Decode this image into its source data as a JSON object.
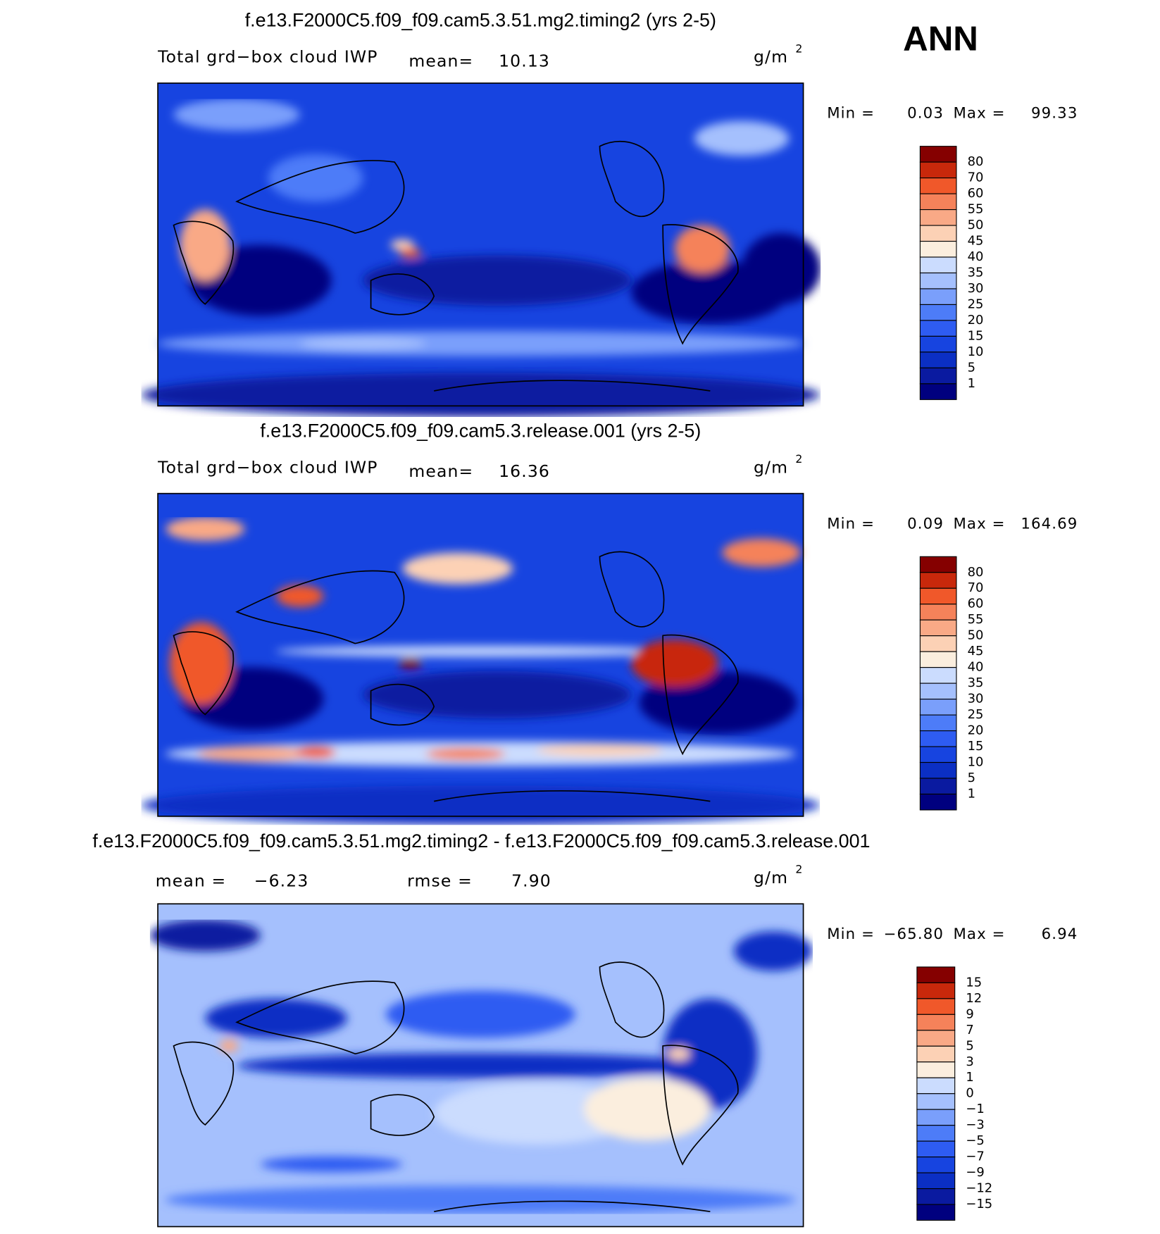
{
  "figure": {
    "season": "ANN",
    "palette": [
      "#00007f",
      "#0a1aa0",
      "#0b2fc4",
      "#1744e0",
      "#2e5cf2",
      "#4d7cf8",
      "#7a9ffb",
      "#a5c0fd",
      "#cbdcfe",
      "#fbeede",
      "#fcd1b5",
      "#f9a986",
      "#f5825a",
      "#f0582a",
      "#c8280b",
      "#850000"
    ],
    "panels": [
      {
        "title": "f.e13.F2000C5.f09_f09.cam5.3.51.mg2.timing2 (yrs 2-5)",
        "variable": "Total grd−box cloud IWP",
        "stats": [
          {
            "label": "mean=",
            "value": "10.13"
          }
        ],
        "units": {
          "base": "g/m",
          "sup": "2"
        },
        "min_label": "Min =",
        "min": "0.03",
        "max_label": "Max =",
        "max": "99.33",
        "levels": [
          "80",
          "70",
          "60",
          "55",
          "50",
          "45",
          "40",
          "35",
          "30",
          "25",
          "20",
          "15",
          "10",
          "5",
          "1"
        ]
      },
      {
        "title": "f.e13.F2000C5.f09_f09.cam5.3.release.001 (yrs 2-5)",
        "variable": "Total grd−box cloud IWP",
        "stats": [
          {
            "label": "mean=",
            "value": "16.36"
          }
        ],
        "units": {
          "base": "g/m",
          "sup": "2"
        },
        "min_label": "Min =",
        "min": "0.09",
        "max_label": "Max =",
        "max": "164.69",
        "levels": [
          "80",
          "70",
          "60",
          "55",
          "50",
          "45",
          "40",
          "35",
          "30",
          "25",
          "20",
          "15",
          "10",
          "5",
          "1"
        ]
      },
      {
        "title": "f.e13.F2000C5.f09_f09.cam5.3.51.mg2.timing2 - f.e13.F2000C5.f09_f09.cam5.3.release.001",
        "stats": [
          {
            "label": "mean =",
            "value": "−6.23"
          },
          {
            "label": "rmse =",
            "value": "7.90"
          }
        ],
        "units": {
          "base": "g/m",
          "sup": "2"
        },
        "min_label": "Min =",
        "min": "−65.80",
        "max_label": "Max =",
        "max": "6.94",
        "levels": [
          "15",
          "12",
          "9",
          "7",
          "5",
          "3",
          "1",
          "0",
          "−1",
          "−3",
          "−5",
          "−7",
          "−9",
          "−12",
          "−15"
        ]
      }
    ]
  }
}
